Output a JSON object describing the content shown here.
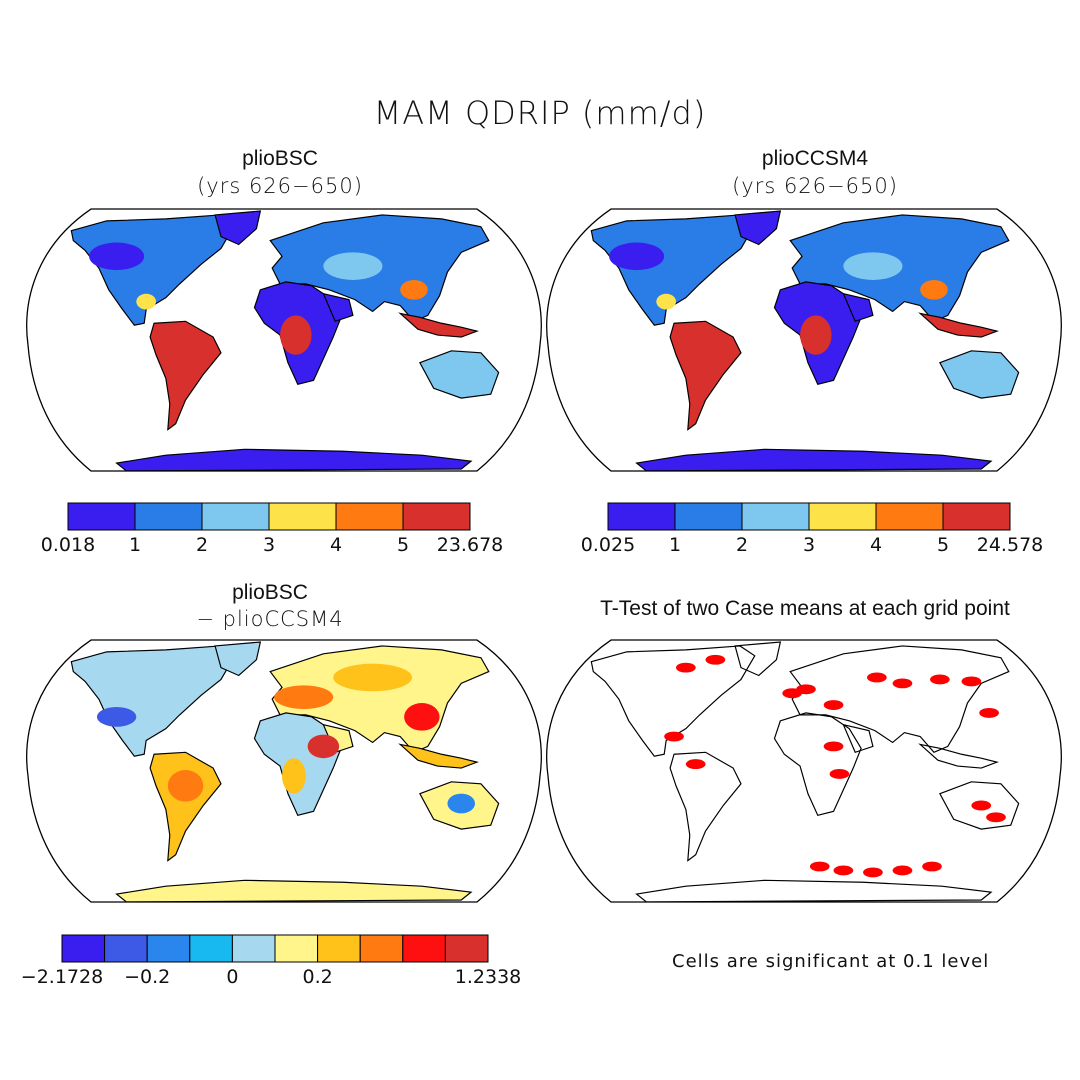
{
  "figure": {
    "title": "MAM QDRIP (mm/d)",
    "note": "Cells are significant at 0.1 level"
  },
  "panels": [
    {
      "id": "a",
      "title": "plioBSC",
      "subtitle": "(yrs 626−650)"
    },
    {
      "id": "b",
      "title": "plioCCSM4",
      "subtitle": "(yrs 626−650)"
    },
    {
      "id": "c",
      "title": "plioBSC",
      "subtitle": "− plioCCSM4"
    },
    {
      "id": "d",
      "title": "T-Test of two Case means at each grid point",
      "subtitle": ""
    }
  ],
  "colorbars": [
    {
      "id": "cb1",
      "colors": [
        "#3a1ef0",
        "#2a7de6",
        "#7ec8f0",
        "#fde24a",
        "#ff7a10",
        "#d8302c"
      ],
      "ticks": [
        "0.018",
        "1",
        "2",
        "3",
        "4",
        "5",
        "23.678"
      ]
    },
    {
      "id": "cb2",
      "colors": [
        "#3a1ef0",
        "#2a7de6",
        "#7ec8f0",
        "#fde24a",
        "#ff7a10",
        "#d8302c"
      ],
      "ticks": [
        "0.025",
        "1",
        "2",
        "3",
        "4",
        "5",
        "24.578"
      ]
    },
    {
      "id": "cb3",
      "colors": [
        "#3a1ef0",
        "#3d5ae6",
        "#2a86ec",
        "#18b8f0",
        "#a6d8f0",
        "#fff58a",
        "#ffc21a",
        "#ff7a10",
        "#ff1010",
        "#d8302c"
      ],
      "ticks": [
        "−2.1728",
        "−0.2",
        "0",
        "0.2",
        "1.2338"
      ]
    }
  ]
}
